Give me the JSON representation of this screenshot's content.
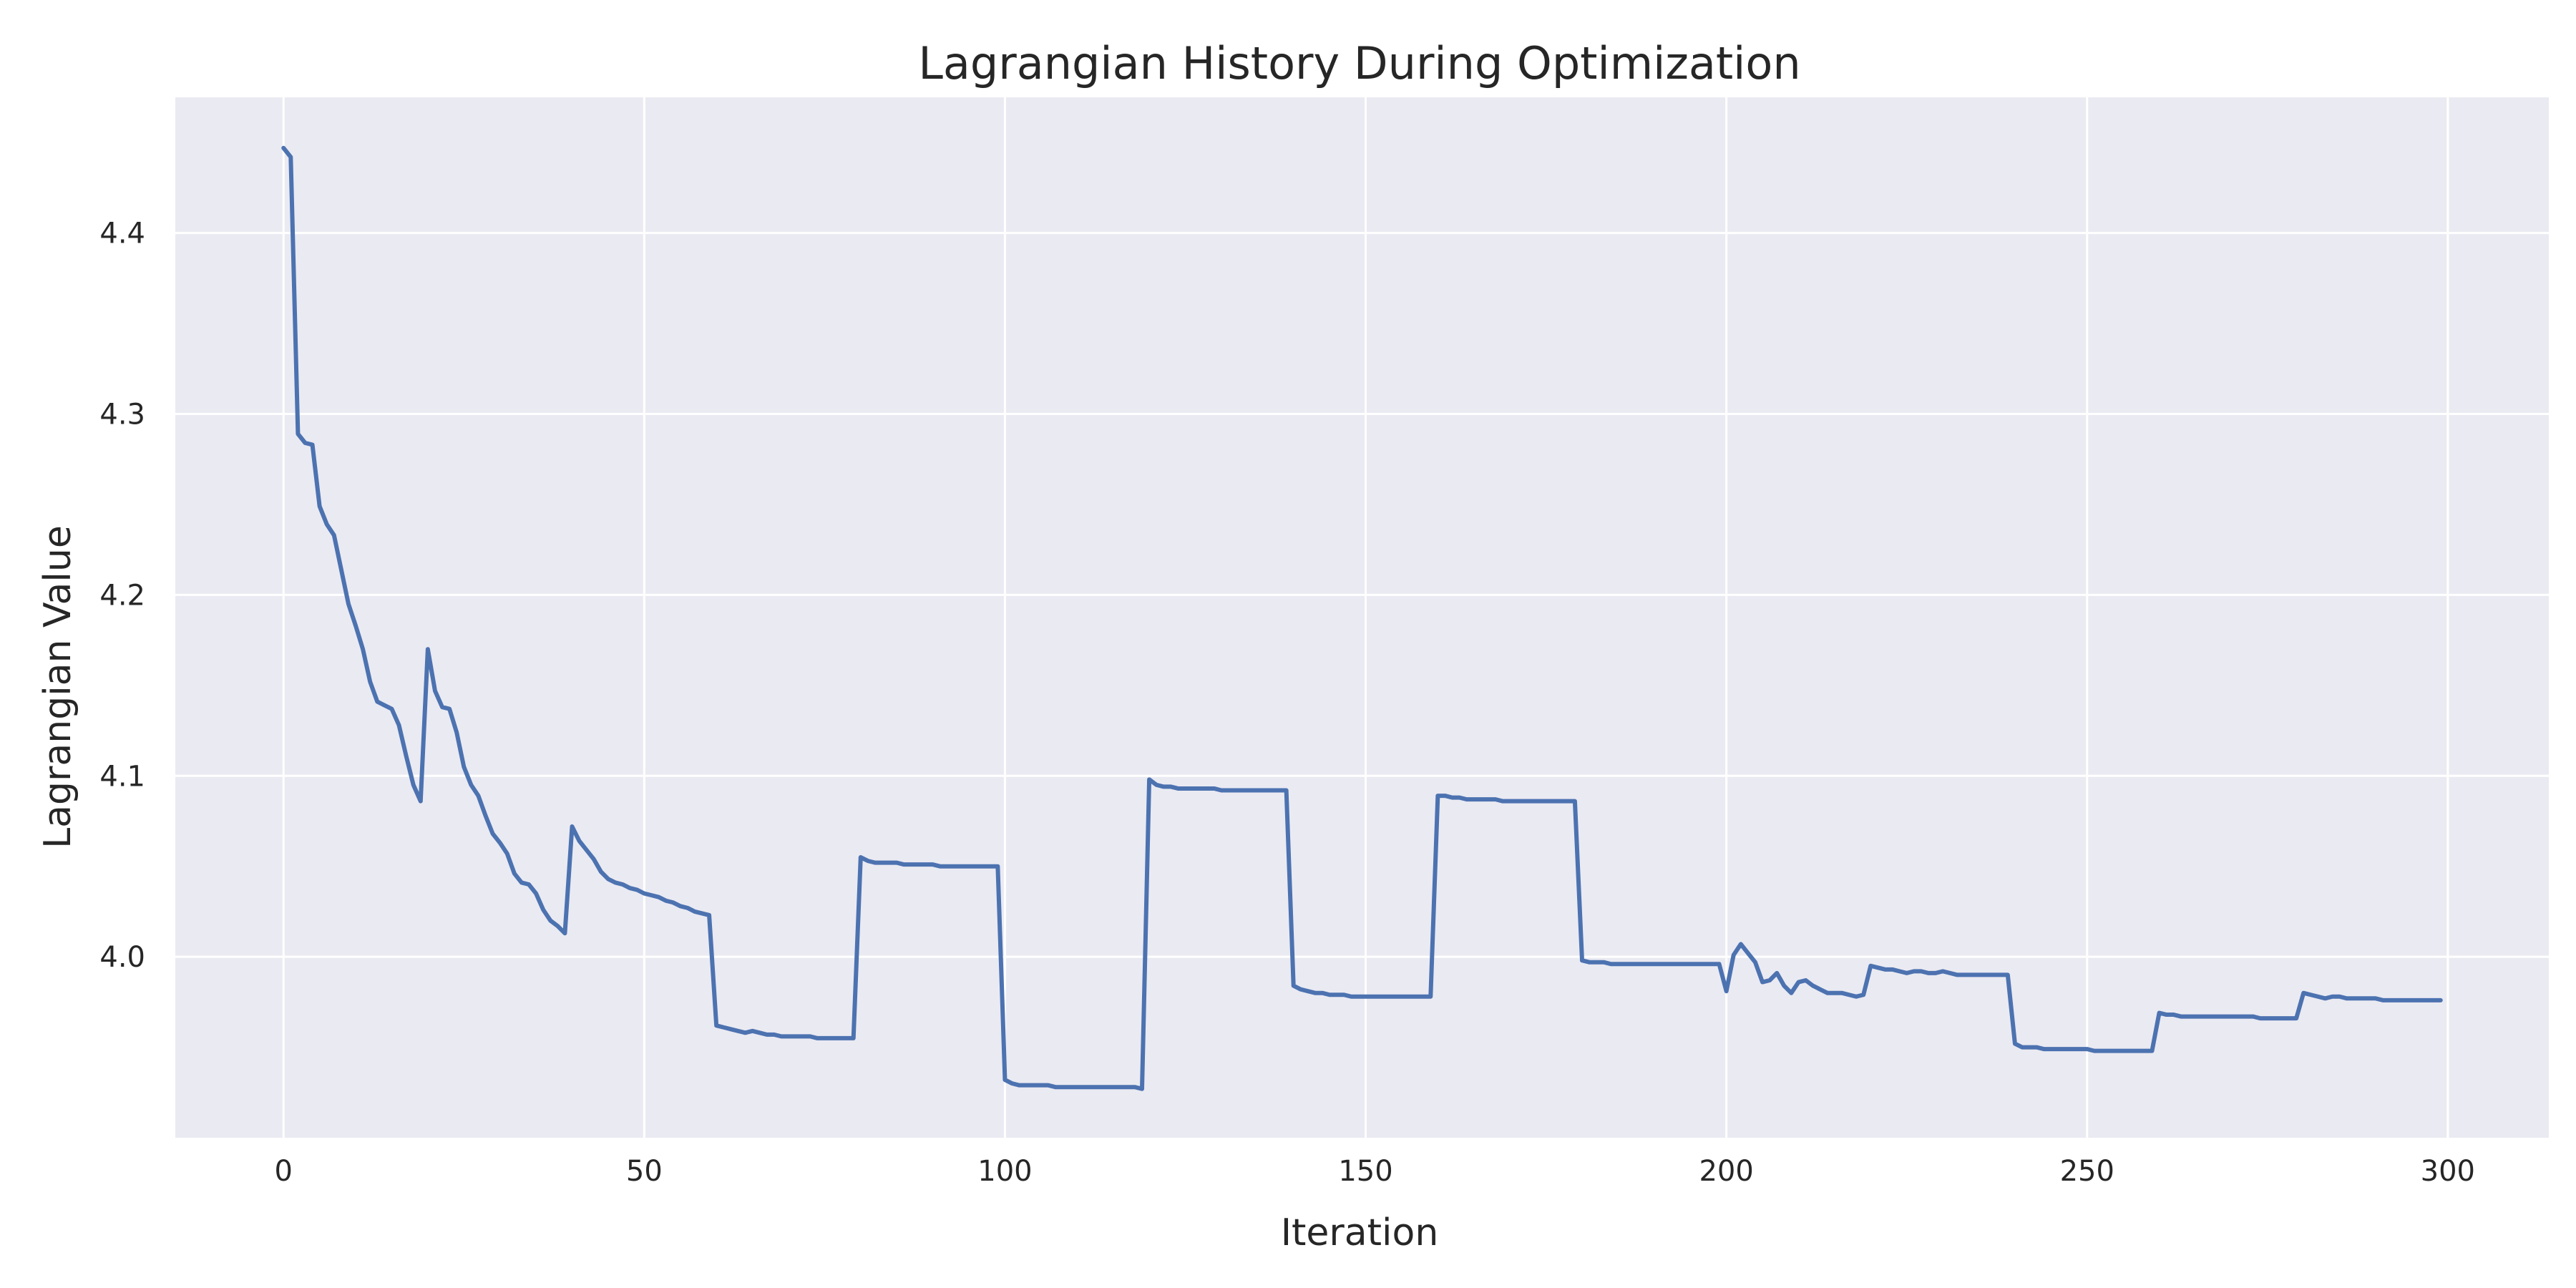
{
  "chart_data": {
    "type": "line",
    "title": "Lagrangian History During Optimization",
    "xlabel": "Iteration",
    "ylabel": "Lagrangian Value",
    "xlim": [
      -15,
      314
    ],
    "ylim": [
      3.9,
      4.475
    ],
    "xticks": [
      0,
      50,
      100,
      150,
      200,
      250,
      300
    ],
    "yticks": [
      4.0,
      4.1,
      4.2,
      4.3,
      4.4
    ],
    "grid": true,
    "colors": {
      "background": "#eaeaf2",
      "grid": "#ffffff",
      "line": "#4c72b0",
      "text": "#262626"
    },
    "series": [
      {
        "x": [
          0,
          1,
          2,
          3,
          4,
          5,
          6,
          7,
          8,
          9,
          10,
          11,
          12,
          13,
          14,
          15,
          16,
          17,
          18,
          19,
          20,
          21,
          22,
          23,
          24,
          25,
          26,
          27,
          28,
          29,
          30,
          31,
          32,
          33,
          34,
          35,
          36,
          37,
          38,
          39,
          40,
          41,
          42,
          43,
          44,
          45,
          46,
          47,
          48,
          49,
          50,
          51,
          52,
          53,
          54,
          55,
          56,
          57,
          58,
          59,
          60,
          61,
          62,
          63,
          64,
          65,
          66,
          67,
          68,
          69,
          70,
          71,
          72,
          73,
          74,
          75,
          76,
          77,
          78,
          79,
          80,
          81,
          82,
          83,
          84,
          85,
          86,
          87,
          88,
          89,
          90,
          91,
          92,
          93,
          94,
          95,
          96,
          97,
          98,
          99,
          100,
          101,
          102,
          103,
          104,
          105,
          106,
          107,
          108,
          109,
          110,
          111,
          112,
          113,
          114,
          115,
          116,
          117,
          118,
          119,
          120,
          121,
          122,
          123,
          124,
          125,
          126,
          127,
          128,
          129,
          130,
          131,
          132,
          133,
          134,
          135,
          136,
          137,
          138,
          139,
          140,
          141,
          142,
          143,
          144,
          145,
          146,
          147,
          148,
          149,
          150,
          151,
          152,
          153,
          154,
          155,
          156,
          157,
          158,
          159,
          160,
          161,
          162,
          163,
          164,
          165,
          166,
          167,
          168,
          169,
          170,
          171,
          172,
          173,
          174,
          175,
          176,
          177,
          178,
          179,
          180,
          181,
          182,
          183,
          184,
          185,
          186,
          187,
          188,
          189,
          190,
          191,
          192,
          193,
          194,
          195,
          196,
          197,
          198,
          199,
          200,
          201,
          202,
          203,
          204,
          205,
          206,
          207,
          208,
          209,
          210,
          211,
          212,
          213,
          214,
          215,
          216,
          217,
          218,
          219,
          220,
          221,
          222,
          223,
          224,
          225,
          226,
          227,
          228,
          229,
          230,
          231,
          232,
          233,
          234,
          235,
          236,
          237,
          238,
          239,
          240,
          241,
          242,
          243,
          244,
          245,
          246,
          247,
          248,
          249,
          250,
          251,
          252,
          253,
          254,
          255,
          256,
          257,
          258,
          259,
          260,
          261,
          262,
          263,
          264,
          265,
          266,
          267,
          268,
          269,
          270,
          271,
          272,
          273,
          274,
          275,
          276,
          277,
          278,
          279,
          280,
          281,
          282,
          283,
          284,
          285,
          286,
          287,
          288,
          289,
          290,
          291,
          292,
          293,
          294,
          295,
          296,
          297,
          298,
          299
        ],
        "y": [
          4.447,
          4.442,
          4.289,
          4.284,
          4.283,
          4.249,
          4.239,
          4.233,
          4.214,
          4.195,
          4.183,
          4.17,
          4.152,
          4.141,
          4.139,
          4.137,
          4.128,
          4.111,
          4.095,
          4.086,
          4.17,
          4.147,
          4.138,
          4.137,
          4.124,
          4.105,
          4.095,
          4.089,
          4.078,
          4.068,
          4.063,
          4.057,
          4.046,
          4.041,
          4.04,
          4.035,
          4.026,
          4.02,
          4.017,
          4.013,
          4.072,
          4.064,
          4.059,
          4.054,
          4.047,
          4.043,
          4.041,
          4.04,
          4.038,
          4.037,
          4.035,
          4.034,
          4.033,
          4.031,
          4.03,
          4.028,
          4.027,
          4.025,
          4.024,
          4.023,
          3.962,
          3.961,
          3.96,
          3.959,
          3.958,
          3.959,
          3.958,
          3.957,
          3.957,
          3.956,
          3.956,
          3.956,
          3.956,
          3.956,
          3.955,
          3.955,
          3.955,
          3.955,
          3.955,
          3.955,
          4.055,
          4.053,
          4.052,
          4.052,
          4.052,
          4.052,
          4.051,
          4.051,
          4.051,
          4.051,
          4.051,
          4.05,
          4.05,
          4.05,
          4.05,
          4.05,
          4.05,
          4.05,
          4.05,
          4.05,
          3.932,
          3.93,
          3.929,
          3.929,
          3.929,
          3.929,
          3.929,
          3.928,
          3.928,
          3.928,
          3.928,
          3.928,
          3.928,
          3.928,
          3.928,
          3.928,
          3.928,
          3.928,
          3.928,
          3.927,
          4.098,
          4.095,
          4.094,
          4.094,
          4.093,
          4.093,
          4.093,
          4.093,
          4.093,
          4.093,
          4.092,
          4.092,
          4.092,
          4.092,
          4.092,
          4.092,
          4.092,
          4.092,
          4.092,
          4.092,
          3.984,
          3.982,
          3.981,
          3.98,
          3.98,
          3.979,
          3.979,
          3.979,
          3.978,
          3.978,
          3.978,
          3.978,
          3.978,
          3.978,
          3.978,
          3.978,
          3.978,
          3.978,
          3.978,
          3.978,
          4.089,
          4.089,
          4.088,
          4.088,
          4.087,
          4.087,
          4.087,
          4.087,
          4.087,
          4.086,
          4.086,
          4.086,
          4.086,
          4.086,
          4.086,
          4.086,
          4.086,
          4.086,
          4.086,
          4.086,
          3.998,
          3.997,
          3.997,
          3.997,
          3.996,
          3.996,
          3.996,
          3.996,
          3.996,
          3.996,
          3.996,
          3.996,
          3.996,
          3.996,
          3.996,
          3.996,
          3.996,
          3.996,
          3.996,
          3.996,
          3.981,
          4.001,
          4.007,
          4.002,
          3.997,
          3.986,
          3.987,
          3.991,
          3.984,
          3.98,
          3.986,
          3.987,
          3.984,
          3.982,
          3.98,
          3.98,
          3.98,
          3.979,
          3.978,
          3.979,
          3.995,
          3.994,
          3.993,
          3.993,
          3.992,
          3.991,
          3.992,
          3.992,
          3.991,
          3.991,
          3.992,
          3.991,
          3.99,
          3.99,
          3.99,
          3.99,
          3.99,
          3.99,
          3.99,
          3.99,
          3.952,
          3.95,
          3.95,
          3.95,
          3.949,
          3.949,
          3.949,
          3.949,
          3.949,
          3.949,
          3.949,
          3.948,
          3.948,
          3.948,
          3.948,
          3.948,
          3.948,
          3.948,
          3.948,
          3.948,
          3.969,
          3.968,
          3.968,
          3.967,
          3.967,
          3.967,
          3.967,
          3.967,
          3.967,
          3.967,
          3.967,
          3.967,
          3.967,
          3.967,
          3.966,
          3.966,
          3.966,
          3.966,
          3.966,
          3.966,
          3.98,
          3.979,
          3.978,
          3.977,
          3.978,
          3.978,
          3.977,
          3.977,
          3.977,
          3.977,
          3.977,
          3.976,
          3.976,
          3.976,
          3.976,
          3.976,
          3.976,
          3.976,
          3.976,
          3.976
        ]
      }
    ]
  }
}
